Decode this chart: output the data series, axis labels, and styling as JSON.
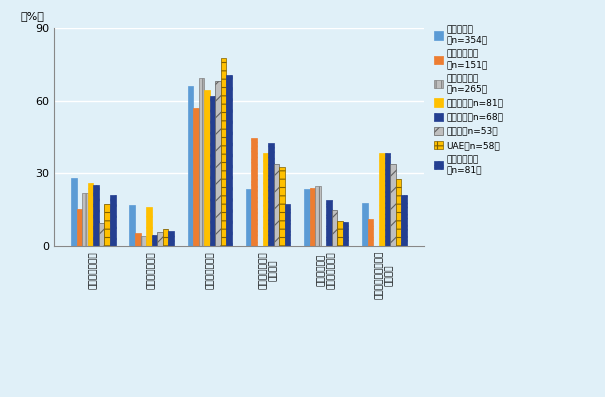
{
  "categories": [
    "調達先の見直し",
    "生産地の見直し",
    "販売戦略の変更",
    "雇用・雇用条件\nの見直し",
    "人材の現地化\n（駐在員削減）",
    "財務・ファイナンス\nの見直し"
  ],
  "series": [
    {
      "label_line1": "中国・華東",
      "label_line2": "（n=354）",
      "values": [
        28.2,
        16.9,
        66.1,
        23.7,
        23.4,
        17.8
      ],
      "color": "#5B9BD5",
      "edgecolor": "#5B9BD5",
      "hatch": ""
    },
    {
      "label_line1": "シンガポール",
      "label_line2": "（n=151）",
      "values": [
        15.2,
        5.3,
        57.0,
        44.4,
        23.8,
        11.3
      ],
      "color": "#ED7D31",
      "edgecolor": "#ED7D31",
      "hatch": "xxx"
    },
    {
      "label_line1": "インドネシア",
      "label_line2": "（n=265）",
      "values": [
        21.9,
        4.2,
        69.1,
        0,
        24.9,
        0
      ],
      "color": "#BFBFBF",
      "edgecolor": "#808080",
      "hatch": "|||"
    },
    {
      "label_line1": "メキシコ（n=81）",
      "label_line2": "",
      "values": [
        25.9,
        16.0,
        64.2,
        38.3,
        0,
        38.3
      ],
      "color": "#FFC000",
      "edgecolor": "#FFC000",
      "hatch": "..."
    },
    {
      "label_line1": "ブラジル（n=68）",
      "label_line2": "",
      "values": [
        25.0,
        4.4,
        61.8,
        42.6,
        19.1,
        38.2
      ],
      "color": "#243F91",
      "edgecolor": "#243F91",
      "hatch": "xxx"
    },
    {
      "label_line1": "ロシア（n=53）",
      "label_line2": "",
      "values": [
        9.4,
        5.7,
        67.9,
        34.0,
        15.1,
        34.0
      ],
      "color": "#BFBFBF",
      "edgecolor": "#606060",
      "hatch": "//"
    },
    {
      "label_line1": "UAE（n=58）",
      "label_line2": "",
      "values": [
        17.2,
        6.9,
        77.6,
        32.8,
        10.3,
        27.6
      ],
      "color": "#FFC000",
      "edgecolor": "#806000",
      "hatch": "++"
    },
    {
      "label_line1": "（参考）日本",
      "label_line2": "（n=81）",
      "values": [
        21.0,
        6.2,
        70.4,
        17.3,
        9.9,
        21.0
      ],
      "color": "#243F91",
      "edgecolor": "#243F91",
      "hatch": "xxx"
    }
  ],
  "ylim": [
    0,
    90
  ],
  "yticks": [
    0,
    30,
    60,
    90
  ],
  "ylabel": "（%）",
  "bg_color": "#E0F0F8"
}
